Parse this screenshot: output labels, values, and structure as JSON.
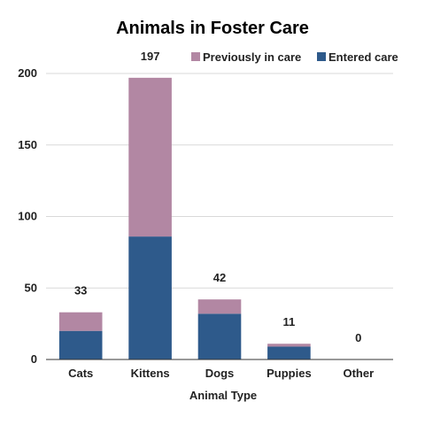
{
  "chart_data": {
    "type": "bar",
    "stacked": true,
    "title": "Animals in Foster Care",
    "xlabel": "Animal Type",
    "ylabel": "",
    "categories": [
      "Cats",
      "Kittens",
      "Dogs",
      "Puppies",
      "Other"
    ],
    "series": [
      {
        "name": "Entered care",
        "color": "#2e5a8b",
        "values": [
          20,
          86,
          32,
          9,
          0
        ]
      },
      {
        "name": "Previously in care",
        "color": "#b287a3",
        "values": [
          13,
          111,
          10,
          2,
          0
        ]
      }
    ],
    "totals": [
      33,
      197,
      42,
      11,
      0
    ],
    "ylim": [
      0,
      200
    ],
    "yticks": [
      0,
      50,
      100,
      150,
      200
    ],
    "grid": true,
    "legend_position": "top-right"
  }
}
